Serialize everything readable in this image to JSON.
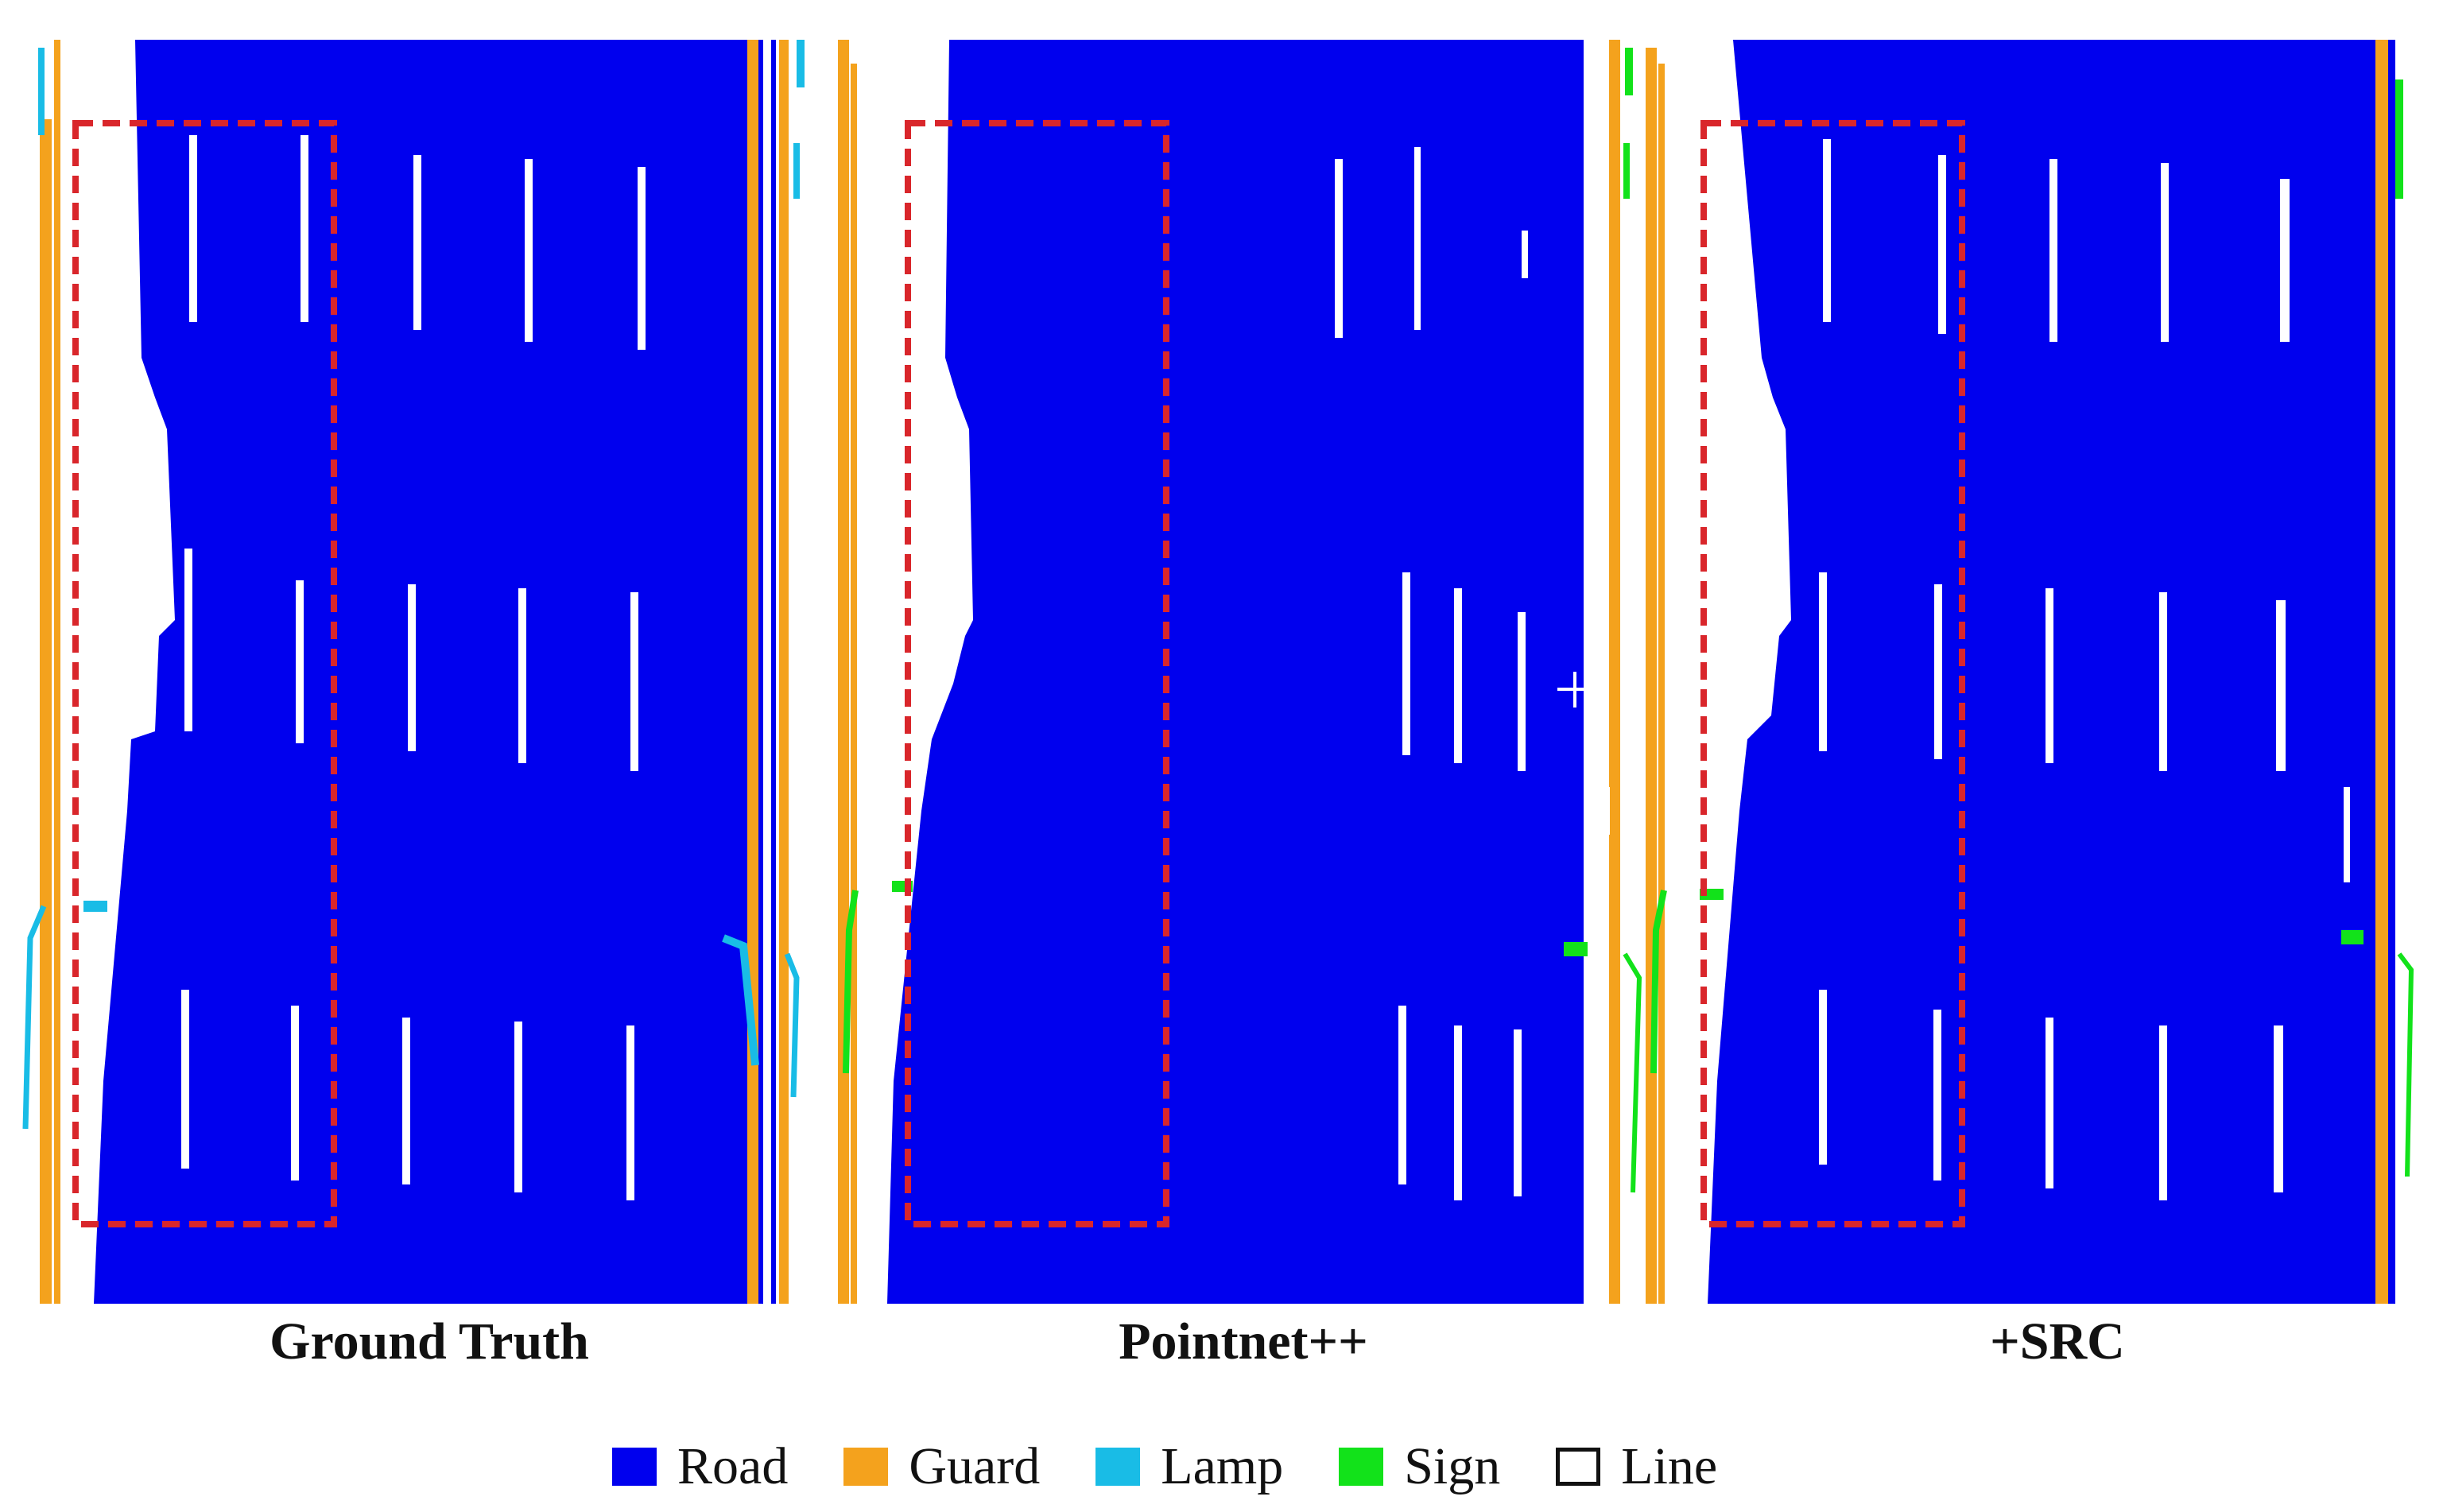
{
  "panels": [
    {
      "caption": "Ground Truth"
    },
    {
      "caption": "Pointnet++"
    },
    {
      "caption": "+SRC"
    }
  ],
  "legend": {
    "items": [
      {
        "label": "Road",
        "color": "#0000EE"
      },
      {
        "label": "Guard",
        "color": "#F4A21D"
      },
      {
        "label": "Lamp",
        "color": "#19BCE6"
      },
      {
        "label": "Sign",
        "color": "#12E21A"
      },
      {
        "label": "Line",
        "color": "#FFFFFF"
      }
    ]
  },
  "colors": {
    "road": "#0000EE",
    "guard": "#F4A21D",
    "lamp": "#19BCE6",
    "sign": "#12E21A",
    "line": "#FFFFFF",
    "highlight_box": "#D9262B"
  }
}
